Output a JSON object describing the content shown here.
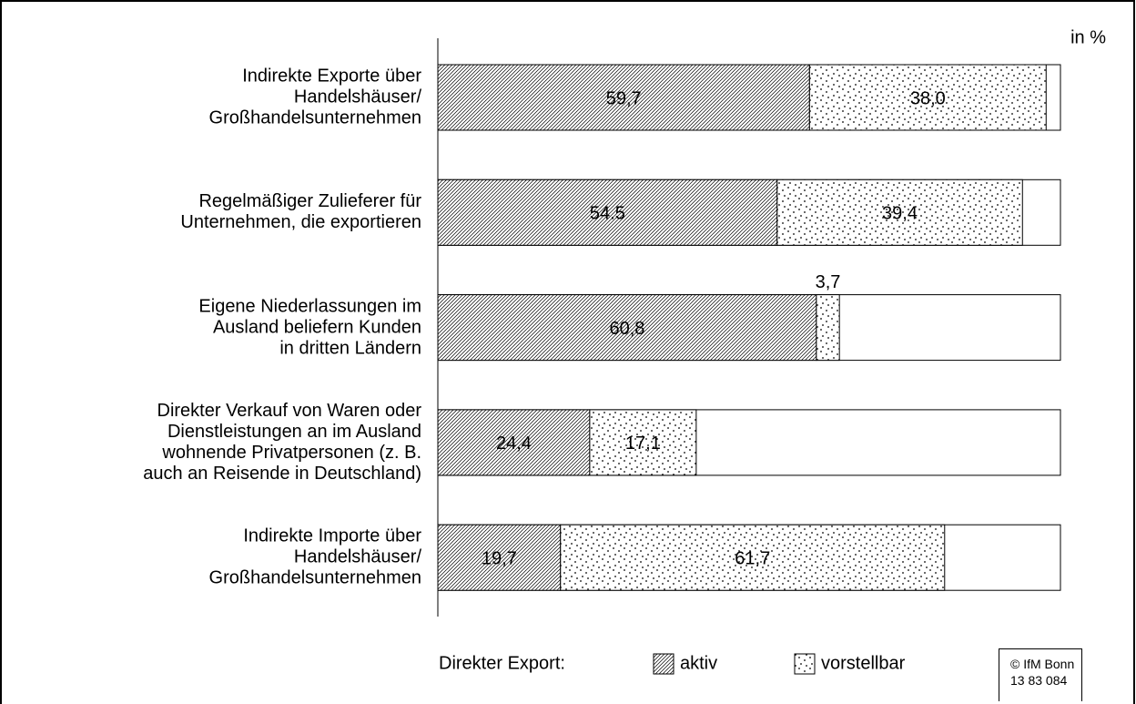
{
  "chart_data": {
    "type": "stacked-barh",
    "x_label": "in %",
    "categories": [
      "Indirekte Exporte über\nHandelshäuser/\nGroßhandelsunternehmen",
      "Regelmäßiger Zulieferer für\nUnternehmen, die exportieren",
      "Eigene Niederlassungen im\nAusland beliefern Kunden\nin dritten Ländern",
      "Direkter Verkauf von Waren oder\nDienstleistungen an im Ausland\nwohnende Privatpersonen (z. B.\nauch an Reisende in Deutschland)",
      "Indirekte Importe über\nHandelshäuser/\nGroßhandelsunternehmen"
    ],
    "series": [
      {
        "name": "aktiv",
        "pattern": "hatch",
        "color": "#000000",
        "values": [
          59.7,
          54.5,
          60.8,
          24.4,
          19.7
        ],
        "value_labels": [
          "59,7",
          "54.5",
          "60,8",
          "24,4",
          "19,7"
        ]
      },
      {
        "name": "vorstellbar",
        "pattern": "dots",
        "color": "#000000",
        "values": [
          38.0,
          39.4,
          3.7,
          17.1,
          61.7
        ],
        "value_labels": [
          "38,0",
          "39,4",
          "3,7",
          "17,1",
          "61,7"
        ]
      }
    ],
    "legend_title": "Direkter Export:",
    "xlim": [
      0,
      100
    ],
    "source": "© IfM Bonn\n13 83 084"
  }
}
